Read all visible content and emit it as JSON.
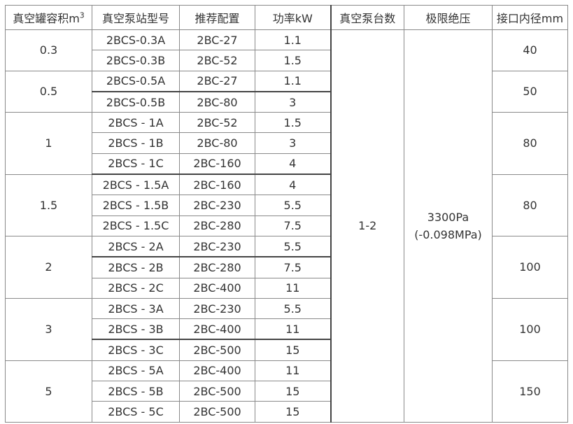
{
  "headers": [
    "真空罐容积m",
    "真空泵站型号",
    "推荐配置",
    "功率kW",
    "真空泵台数",
    "极限绝压",
    "接口内径mm"
  ],
  "header_sup": "3",
  "shared": {
    "pump_count": "1-2",
    "pressure_line1": "3300Pa",
    "pressure_line2": "(-0.098MPa)"
  },
  "groups": [
    {
      "volume": "0.3",
      "port": "40",
      "rows": [
        [
          "2BCS-0.3A",
          "2BC-27",
          "1.1"
        ],
        [
          "2BCS-0.3B",
          "2BC-52",
          "1.5"
        ]
      ]
    },
    {
      "volume": "0.5",
      "port": "50",
      "rows": [
        [
          "2BCS-0.5A",
          "2BC-27",
          "1.1"
        ],
        [
          "2BCS-0.5B",
          "2BC-80",
          "3"
        ]
      ]
    },
    {
      "volume": "1",
      "port": "80",
      "rows": [
        [
          "2BCS - 1A",
          "2BC-52",
          "1.5"
        ],
        [
          "2BCS - 1B",
          "2BC-80",
          "3"
        ],
        [
          "2BCS - 1C",
          "2BC-160",
          "4"
        ]
      ]
    },
    {
      "volume": "1.5",
      "port": "80",
      "rows": [
        [
          "2BCS - 1.5A",
          "2BC-160",
          "4"
        ],
        [
          "2BCS - 1.5B",
          "2BC-230",
          "5.5"
        ],
        [
          "2BCS - 1.5C",
          "2BC-280",
          "7.5"
        ]
      ]
    },
    {
      "volume": "2",
      "port": "100",
      "rows": [
        [
          "2BCS - 2A",
          "2BC-230",
          "5.5"
        ],
        [
          "2BCS - 2B",
          "2BC-280",
          "7.5"
        ],
        [
          "2BCS - 2C",
          "2BC-400",
          "11"
        ]
      ]
    },
    {
      "volume": "3",
      "port": "100",
      "rows": [
        [
          "2BCS - 3A",
          "2BC-230",
          "5.5"
        ],
        [
          "2BCS - 3B",
          "2BC-400",
          "11"
        ],
        [
          "2BCS - 3C",
          "2BC-500",
          "15"
        ]
      ]
    },
    {
      "volume": "5",
      "port": "150",
      "rows": [
        [
          "2BCS - 5A",
          "2BC-400",
          "11"
        ],
        [
          "2BCS - 5B",
          "2BC-500",
          "15"
        ],
        [
          "2BCS - 5C",
          "2BC-500",
          "15"
        ]
      ]
    }
  ]
}
